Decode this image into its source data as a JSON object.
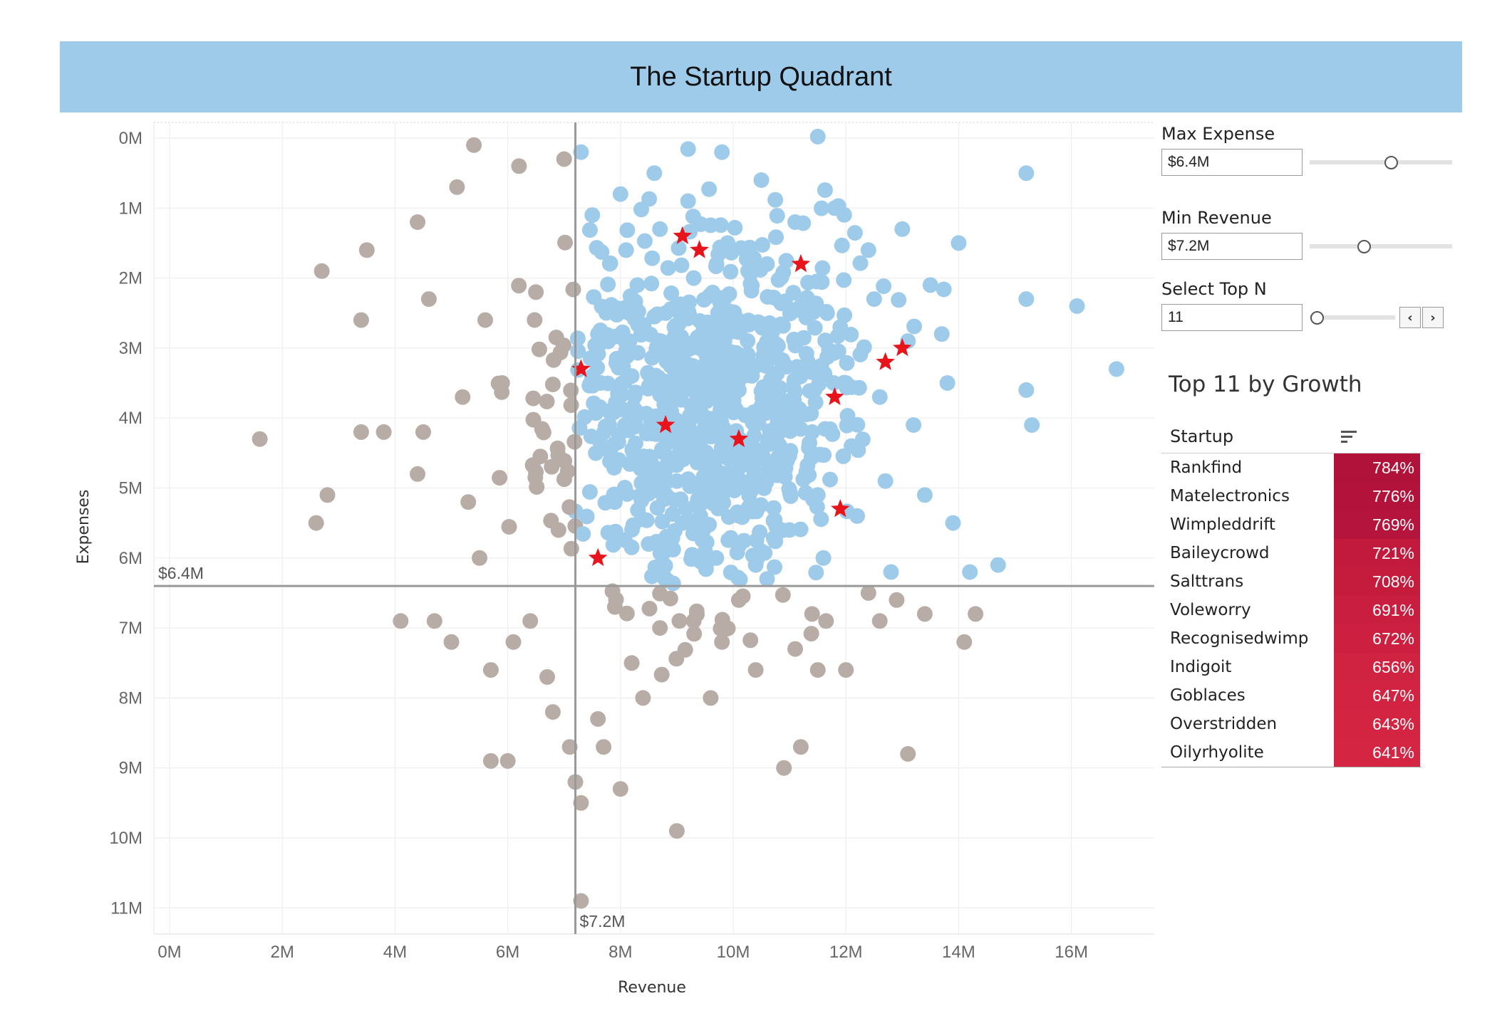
{
  "header": {
    "title": "The Startup Quadrant"
  },
  "controls": {
    "max_expense": {
      "label": "Max Expense",
      "value": "$6.4M",
      "slider_fraction": 0.57
    },
    "min_revenue": {
      "label": "Min Revenue",
      "value": "$7.2M",
      "slider_fraction": 0.38
    },
    "top_n": {
      "label": "Select Top N",
      "value": "11",
      "slider_fraction": 0.08,
      "prev_icon": "chevron-left-icon",
      "next_icon": "chevron-right-icon"
    }
  },
  "table": {
    "title": "Top 11 by Growth",
    "column_header": "Startup",
    "sort_icon": "sort-descending-icon",
    "rows": [
      {
        "name": "Rankfind",
        "growth": "784%",
        "color": "#b0123a"
      },
      {
        "name": "Matelectronics",
        "growth": "776%",
        "color": "#b3133b"
      },
      {
        "name": "Wimpleddrift",
        "growth": "769%",
        "color": "#b5143c"
      },
      {
        "name": "Baileycrowd",
        "growth": "721%",
        "color": "#c21a3d"
      },
      {
        "name": "Salttrans",
        "growth": "708%",
        "color": "#c51c3e"
      },
      {
        "name": "Voleworry",
        "growth": "691%",
        "color": "#c91e3f"
      },
      {
        "name": "Recognisedwimp",
        "growth": "672%",
        "color": "#cd2040"
      },
      {
        "name": "Indigoit",
        "growth": "656%",
        "color": "#d02241"
      },
      {
        "name": "Goblaces",
        "growth": "647%",
        "color": "#d22442"
      },
      {
        "name": "Overstridden",
        "growth": "643%",
        "color": "#d32542"
      },
      {
        "name": "Oilyrhyolite",
        "growth": "641%",
        "color": "#d42643"
      }
    ]
  },
  "chart_data": {
    "type": "scatter",
    "xlabel": "Revenue",
    "ylabel": "Expenses",
    "x_ticks": [
      "0M",
      "2M",
      "4M",
      "6M",
      "8M",
      "10M",
      "12M",
      "14M",
      "16M"
    ],
    "y_ticks": [
      "0M",
      "1M",
      "2M",
      "3M",
      "4M",
      "5M",
      "6M",
      "7M",
      "8M",
      "9M",
      "10M",
      "11M"
    ],
    "xlim": [
      0,
      17.8
    ],
    "ylim": [
      -0.2,
      11.5
    ],
    "y_inverted": true,
    "grid": true,
    "reference_lines": [
      {
        "axis": "y",
        "value": 6.4,
        "label": "$6.4M"
      },
      {
        "axis": "x",
        "value": 7.2,
        "label": "$7.2M"
      }
    ],
    "colors": {
      "in_quadrant": "#9fcbea",
      "out_quadrant": "#b8aca6",
      "top_n": "#e8141c",
      "reference": "#999999"
    },
    "sample_points": [
      [
        1.6,
        4.3
      ],
      [
        2.6,
        5.5
      ],
      [
        2.7,
        1.9
      ],
      [
        2.8,
        5.1
      ],
      [
        3.4,
        2.6
      ],
      [
        3.4,
        4.2
      ],
      [
        3.5,
        1.6
      ],
      [
        3.8,
        4.2
      ],
      [
        4.1,
        6.9
      ],
      [
        4.4,
        1.2
      ],
      [
        4.4,
        4.8
      ],
      [
        4.5,
        4.2
      ],
      [
        4.6,
        2.3
      ],
      [
        4.7,
        6.9
      ],
      [
        5.0,
        7.2
      ],
      [
        5.1,
        0.7
      ],
      [
        5.2,
        3.7
      ],
      [
        5.3,
        5.2
      ],
      [
        5.4,
        0.1
      ],
      [
        5.5,
        6.0
      ],
      [
        5.6,
        2.6
      ],
      [
        5.7,
        8.9
      ],
      [
        5.7,
        7.6
      ],
      [
        5.9,
        3.5
      ],
      [
        6.0,
        8.9
      ],
      [
        6.1,
        7.2
      ],
      [
        6.2,
        0.4
      ],
      [
        6.4,
        6.9
      ],
      [
        6.5,
        2.2
      ],
      [
        6.7,
        7.7
      ],
      [
        6.8,
        8.2
      ],
      [
        6.9,
        5.6
      ],
      [
        7.0,
        0.3
      ],
      [
        7.1,
        8.7
      ],
      [
        7.2,
        9.2
      ],
      [
        7.3,
        9.5
      ],
      [
        7.3,
        10.9
      ],
      [
        7.6,
        8.3
      ],
      [
        7.7,
        8.7
      ],
      [
        7.9,
        6.7
      ],
      [
        8.0,
        9.3
      ],
      [
        8.2,
        7.5
      ],
      [
        8.4,
        8.0
      ],
      [
        8.7,
        7.0
      ],
      [
        9.0,
        9.9
      ],
      [
        9.3,
        6.9
      ],
      [
        9.6,
        8.0
      ],
      [
        9.8,
        7.2
      ],
      [
        10.1,
        6.6
      ],
      [
        10.4,
        7.6
      ],
      [
        10.6,
        6.3
      ],
      [
        10.9,
        9.0
      ],
      [
        11.1,
        7.3
      ],
      [
        11.2,
        8.7
      ],
      [
        11.4,
        6.8
      ],
      [
        11.5,
        7.6
      ],
      [
        12.0,
        7.6
      ],
      [
        12.4,
        6.5
      ],
      [
        12.6,
        6.9
      ],
      [
        12.9,
        6.6
      ],
      [
        13.1,
        8.8
      ],
      [
        13.4,
        6.8
      ],
      [
        14.1,
        7.2
      ],
      [
        14.3,
        6.8
      ],
      [
        7.3,
        0.2
      ],
      [
        7.5,
        1.1
      ],
      [
        7.6,
        2.8
      ],
      [
        7.8,
        4.1
      ],
      [
        7.9,
        5.2
      ],
      [
        8.0,
        0.8
      ],
      [
        8.1,
        1.6
      ],
      [
        8.2,
        3.4
      ],
      [
        8.3,
        2.1
      ],
      [
        8.4,
        4.6
      ],
      [
        8.5,
        5.8
      ],
      [
        8.6,
        0.5
      ],
      [
        8.7,
        1.3
      ],
      [
        8.8,
        2.5
      ],
      [
        8.9,
        3.9
      ],
      [
        9.0,
        4.9
      ],
      [
        9.1,
        5.5
      ],
      [
        9.2,
        0.9
      ],
      [
        9.3,
        2.0
      ],
      [
        9.4,
        3.0
      ],
      [
        9.5,
        4.2
      ],
      [
        9.6,
        5.0
      ],
      [
        9.7,
        6.0
      ],
      [
        9.8,
        0.2
      ],
      [
        9.9,
        1.5
      ],
      [
        10.0,
        2.6
      ],
      [
        10.1,
        3.6
      ],
      [
        10.2,
        4.5
      ],
      [
        10.3,
        5.3
      ],
      [
        10.4,
        6.1
      ],
      [
        10.5,
        0.6
      ],
      [
        10.6,
        1.8
      ],
      [
        10.7,
        2.9
      ],
      [
        10.8,
        3.8
      ],
      [
        10.9,
        4.7
      ],
      [
        11.0,
        5.6
      ],
      [
        11.1,
        1.2
      ],
      [
        11.2,
        2.4
      ],
      [
        11.3,
        3.3
      ],
      [
        11.4,
        4.2
      ],
      [
        11.5,
        5.1
      ],
      [
        11.6,
        6.0
      ],
      [
        11.8,
        1.0
      ],
      [
        11.9,
        2.7
      ],
      [
        12.0,
        3.5
      ],
      [
        12.1,
        4.4
      ],
      [
        12.2,
        5.4
      ],
      [
        12.4,
        1.6
      ],
      [
        12.5,
        2.3
      ],
      [
        12.6,
        3.7
      ],
      [
        12.7,
        4.9
      ],
      [
        12.8,
        6.2
      ],
      [
        13.0,
        1.3
      ],
      [
        13.1,
        2.9
      ],
      [
        13.2,
        4.1
      ],
      [
        13.4,
        5.1
      ],
      [
        13.5,
        2.1
      ],
      [
        13.7,
        2.8
      ],
      [
        13.8,
        3.5
      ],
      [
        13.9,
        5.5
      ],
      [
        14.0,
        1.5
      ],
      [
        14.2,
        6.2
      ],
      [
        14.7,
        6.1
      ],
      [
        15.2,
        0.5
      ],
      [
        15.2,
        2.3
      ],
      [
        15.2,
        3.6
      ],
      [
        15.3,
        4.1
      ],
      [
        16.1,
        2.4
      ],
      [
        16.8,
        3.3
      ]
    ],
    "top_n_points": [
      [
        9.1,
        1.4
      ],
      [
        9.4,
        1.6
      ],
      [
        11.2,
        1.8
      ],
      [
        7.3,
        3.3
      ],
      [
        12.7,
        3.2
      ],
      [
        13.0,
        3.0
      ],
      [
        11.8,
        3.7
      ],
      [
        8.8,
        4.1
      ],
      [
        10.1,
        4.3
      ],
      [
        11.9,
        5.3
      ],
      [
        7.6,
        6.0
      ]
    ]
  }
}
